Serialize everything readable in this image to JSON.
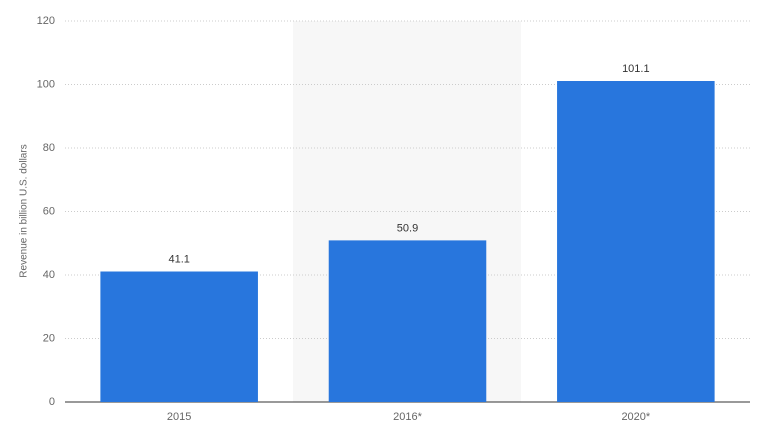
{
  "chart_data": {
    "type": "bar",
    "y_label": "Revenue in billion U.S. dollars",
    "categories": [
      "2015",
      "2016*",
      "2020*"
    ],
    "values": [
      41.1,
      50.9,
      101.1
    ],
    "color": "#2876dd",
    "ylim": [
      0,
      120
    ],
    "yticks": [
      0,
      20,
      40,
      60,
      80,
      100,
      120
    ],
    "grid": true
  }
}
